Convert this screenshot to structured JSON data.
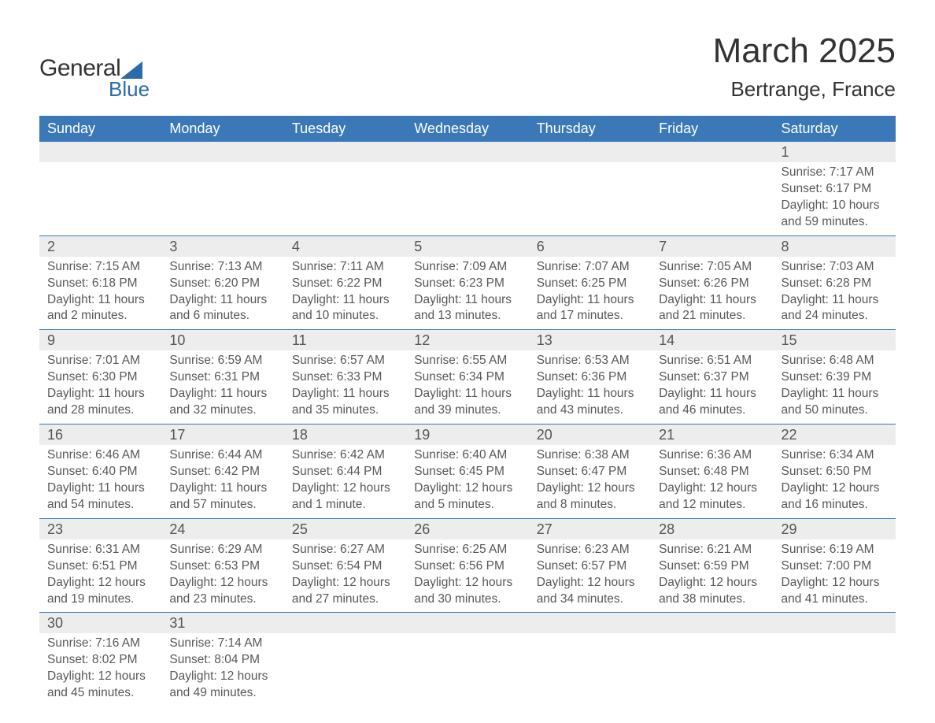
{
  "logo": {
    "general": "General",
    "blue": "Blue"
  },
  "title": "March 2025",
  "location": "Bertrange, France",
  "colors": {
    "header_bg": "#3b78b8",
    "header_text": "#ffffff",
    "daynum_bg": "#ededed",
    "row_border": "#3b78b8",
    "text": "#4a4a4a",
    "logo_accent": "#2b6aab"
  },
  "typography": {
    "title_fontsize": 44,
    "location_fontsize": 26,
    "dow_fontsize": 18,
    "daynum_fontsize": 18,
    "body_fontsize": 15.5
  },
  "days_of_week": [
    "Sunday",
    "Monday",
    "Tuesday",
    "Wednesday",
    "Thursday",
    "Friday",
    "Saturday"
  ],
  "weeks": [
    [
      {},
      {},
      {},
      {},
      {},
      {},
      {
        "n": "1",
        "sunrise": "Sunrise: 7:17 AM",
        "sunset": "Sunset: 6:17 PM",
        "dl1": "Daylight: 10 hours",
        "dl2": "and 59 minutes."
      }
    ],
    [
      {
        "n": "2",
        "sunrise": "Sunrise: 7:15 AM",
        "sunset": "Sunset: 6:18 PM",
        "dl1": "Daylight: 11 hours",
        "dl2": "and 2 minutes."
      },
      {
        "n": "3",
        "sunrise": "Sunrise: 7:13 AM",
        "sunset": "Sunset: 6:20 PM",
        "dl1": "Daylight: 11 hours",
        "dl2": "and 6 minutes."
      },
      {
        "n": "4",
        "sunrise": "Sunrise: 7:11 AM",
        "sunset": "Sunset: 6:22 PM",
        "dl1": "Daylight: 11 hours",
        "dl2": "and 10 minutes."
      },
      {
        "n": "5",
        "sunrise": "Sunrise: 7:09 AM",
        "sunset": "Sunset: 6:23 PM",
        "dl1": "Daylight: 11 hours",
        "dl2": "and 13 minutes."
      },
      {
        "n": "6",
        "sunrise": "Sunrise: 7:07 AM",
        "sunset": "Sunset: 6:25 PM",
        "dl1": "Daylight: 11 hours",
        "dl2": "and 17 minutes."
      },
      {
        "n": "7",
        "sunrise": "Sunrise: 7:05 AM",
        "sunset": "Sunset: 6:26 PM",
        "dl1": "Daylight: 11 hours",
        "dl2": "and 21 minutes."
      },
      {
        "n": "8",
        "sunrise": "Sunrise: 7:03 AM",
        "sunset": "Sunset: 6:28 PM",
        "dl1": "Daylight: 11 hours",
        "dl2": "and 24 minutes."
      }
    ],
    [
      {
        "n": "9",
        "sunrise": "Sunrise: 7:01 AM",
        "sunset": "Sunset: 6:30 PM",
        "dl1": "Daylight: 11 hours",
        "dl2": "and 28 minutes."
      },
      {
        "n": "10",
        "sunrise": "Sunrise: 6:59 AM",
        "sunset": "Sunset: 6:31 PM",
        "dl1": "Daylight: 11 hours",
        "dl2": "and 32 minutes."
      },
      {
        "n": "11",
        "sunrise": "Sunrise: 6:57 AM",
        "sunset": "Sunset: 6:33 PM",
        "dl1": "Daylight: 11 hours",
        "dl2": "and 35 minutes."
      },
      {
        "n": "12",
        "sunrise": "Sunrise: 6:55 AM",
        "sunset": "Sunset: 6:34 PM",
        "dl1": "Daylight: 11 hours",
        "dl2": "and 39 minutes."
      },
      {
        "n": "13",
        "sunrise": "Sunrise: 6:53 AM",
        "sunset": "Sunset: 6:36 PM",
        "dl1": "Daylight: 11 hours",
        "dl2": "and 43 minutes."
      },
      {
        "n": "14",
        "sunrise": "Sunrise: 6:51 AM",
        "sunset": "Sunset: 6:37 PM",
        "dl1": "Daylight: 11 hours",
        "dl2": "and 46 minutes."
      },
      {
        "n": "15",
        "sunrise": "Sunrise: 6:48 AM",
        "sunset": "Sunset: 6:39 PM",
        "dl1": "Daylight: 11 hours",
        "dl2": "and 50 minutes."
      }
    ],
    [
      {
        "n": "16",
        "sunrise": "Sunrise: 6:46 AM",
        "sunset": "Sunset: 6:40 PM",
        "dl1": "Daylight: 11 hours",
        "dl2": "and 54 minutes."
      },
      {
        "n": "17",
        "sunrise": "Sunrise: 6:44 AM",
        "sunset": "Sunset: 6:42 PM",
        "dl1": "Daylight: 11 hours",
        "dl2": "and 57 minutes."
      },
      {
        "n": "18",
        "sunrise": "Sunrise: 6:42 AM",
        "sunset": "Sunset: 6:44 PM",
        "dl1": "Daylight: 12 hours",
        "dl2": "and 1 minute."
      },
      {
        "n": "19",
        "sunrise": "Sunrise: 6:40 AM",
        "sunset": "Sunset: 6:45 PM",
        "dl1": "Daylight: 12 hours",
        "dl2": "and 5 minutes."
      },
      {
        "n": "20",
        "sunrise": "Sunrise: 6:38 AM",
        "sunset": "Sunset: 6:47 PM",
        "dl1": "Daylight: 12 hours",
        "dl2": "and 8 minutes."
      },
      {
        "n": "21",
        "sunrise": "Sunrise: 6:36 AM",
        "sunset": "Sunset: 6:48 PM",
        "dl1": "Daylight: 12 hours",
        "dl2": "and 12 minutes."
      },
      {
        "n": "22",
        "sunrise": "Sunrise: 6:34 AM",
        "sunset": "Sunset: 6:50 PM",
        "dl1": "Daylight: 12 hours",
        "dl2": "and 16 minutes."
      }
    ],
    [
      {
        "n": "23",
        "sunrise": "Sunrise: 6:31 AM",
        "sunset": "Sunset: 6:51 PM",
        "dl1": "Daylight: 12 hours",
        "dl2": "and 19 minutes."
      },
      {
        "n": "24",
        "sunrise": "Sunrise: 6:29 AM",
        "sunset": "Sunset: 6:53 PM",
        "dl1": "Daylight: 12 hours",
        "dl2": "and 23 minutes."
      },
      {
        "n": "25",
        "sunrise": "Sunrise: 6:27 AM",
        "sunset": "Sunset: 6:54 PM",
        "dl1": "Daylight: 12 hours",
        "dl2": "and 27 minutes."
      },
      {
        "n": "26",
        "sunrise": "Sunrise: 6:25 AM",
        "sunset": "Sunset: 6:56 PM",
        "dl1": "Daylight: 12 hours",
        "dl2": "and 30 minutes."
      },
      {
        "n": "27",
        "sunrise": "Sunrise: 6:23 AM",
        "sunset": "Sunset: 6:57 PM",
        "dl1": "Daylight: 12 hours",
        "dl2": "and 34 minutes."
      },
      {
        "n": "28",
        "sunrise": "Sunrise: 6:21 AM",
        "sunset": "Sunset: 6:59 PM",
        "dl1": "Daylight: 12 hours",
        "dl2": "and 38 minutes."
      },
      {
        "n": "29",
        "sunrise": "Sunrise: 6:19 AM",
        "sunset": "Sunset: 7:00 PM",
        "dl1": "Daylight: 12 hours",
        "dl2": "and 41 minutes."
      }
    ],
    [
      {
        "n": "30",
        "sunrise": "Sunrise: 7:16 AM",
        "sunset": "Sunset: 8:02 PM",
        "dl1": "Daylight: 12 hours",
        "dl2": "and 45 minutes."
      },
      {
        "n": "31",
        "sunrise": "Sunrise: 7:14 AM",
        "sunset": "Sunset: 8:04 PM",
        "dl1": "Daylight: 12 hours",
        "dl2": "and 49 minutes."
      },
      {},
      {},
      {},
      {},
      {}
    ]
  ]
}
